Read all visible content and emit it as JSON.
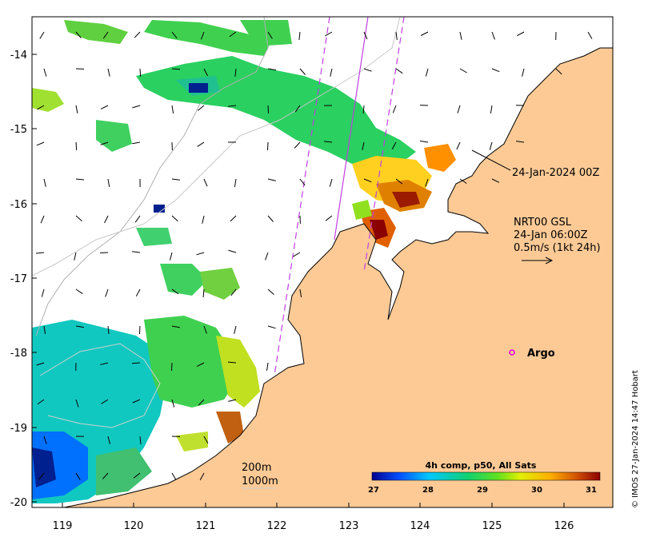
{
  "map": {
    "lon_ticks": [
      "119",
      "120",
      "121",
      "122",
      "123",
      "124",
      "125",
      "126"
    ],
    "lat_ticks": [
      "-14",
      "-15",
      "-16",
      "-17",
      "-18",
      "-19",
      "-20"
    ],
    "track_label": "24-Jan-2024 00Z",
    "current_info": {
      "line1": "NRT00 GSL",
      "line2": "24-Jan 06:00Z",
      "line3": "0.5m/s (1kt 24h)"
    },
    "argo_label": "Argo",
    "depth_contours": {
      "c200": "200m",
      "c1000": "1000m"
    },
    "colorbar": {
      "title": "4h comp, p50, All Sats",
      "ticks": [
        "27",
        "28",
        "29",
        "30",
        "31"
      ],
      "colors": [
        "#00008f",
        "#0050ff",
        "#00c8ff",
        "#10d070",
        "#60e020",
        "#e0f000",
        "#ffb000",
        "#d05000",
        "#8b0000"
      ]
    },
    "credit": "© IMOS 27-Jan-2024 14:47 Hobart",
    "colors": {
      "land": "#fdca96",
      "argo": "#e000e0",
      "track": "#c040e0"
    }
  }
}
